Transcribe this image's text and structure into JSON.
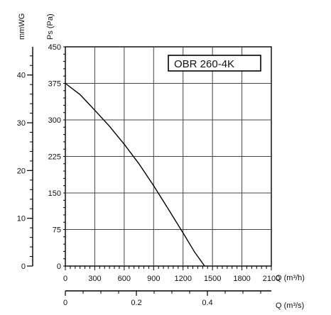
{
  "chart_data": {
    "type": "line",
    "title": "OBR 260-4K",
    "xlabel": "Q (m³/h)",
    "ylabel": "Ps (Pa)",
    "secondary_xlabel": "Q (m³/s)",
    "secondary_ylabel": "mmWG",
    "xlim": [
      0,
      2100
    ],
    "ylim": [
      0,
      450
    ],
    "x_ticks": [
      "0",
      "300",
      "600",
      "900",
      "1200",
      "1500",
      "1800",
      "2100"
    ],
    "y_ticks": [
      "0",
      "75",
      "150",
      "225",
      "300",
      "375",
      "450"
    ],
    "secondary_x_range": [
      0,
      0.58
    ],
    "secondary_x_ticks": [
      {
        "value": 0,
        "label": "0"
      },
      {
        "value": 0.2,
        "label": "0.2"
      },
      {
        "value": 0.4,
        "label": "0.4"
      }
    ],
    "secondary_x_minor_step": 0.05,
    "secondary_y_range": [
      0,
      45.9
    ],
    "secondary_y_ticks": [
      {
        "value": 0,
        "label": "0"
      },
      {
        "value": 10,
        "label": "10"
      },
      {
        "value": 20,
        "label": "20"
      },
      {
        "value": 30,
        "label": "30"
      },
      {
        "value": 40,
        "label": "40"
      }
    ],
    "secondary_y_minor_step": 2,
    "grid": true,
    "series": [
      {
        "values": [
          [
            0,
            375
          ],
          [
            150,
            352
          ],
          [
            300,
            320
          ],
          [
            450,
            287
          ],
          [
            600,
            250
          ],
          [
            750,
            210
          ],
          [
            900,
            165
          ],
          [
            1050,
            117
          ],
          [
            1200,
            68
          ],
          [
            1320,
            28
          ],
          [
            1420,
            0
          ]
        ]
      }
    ]
  }
}
